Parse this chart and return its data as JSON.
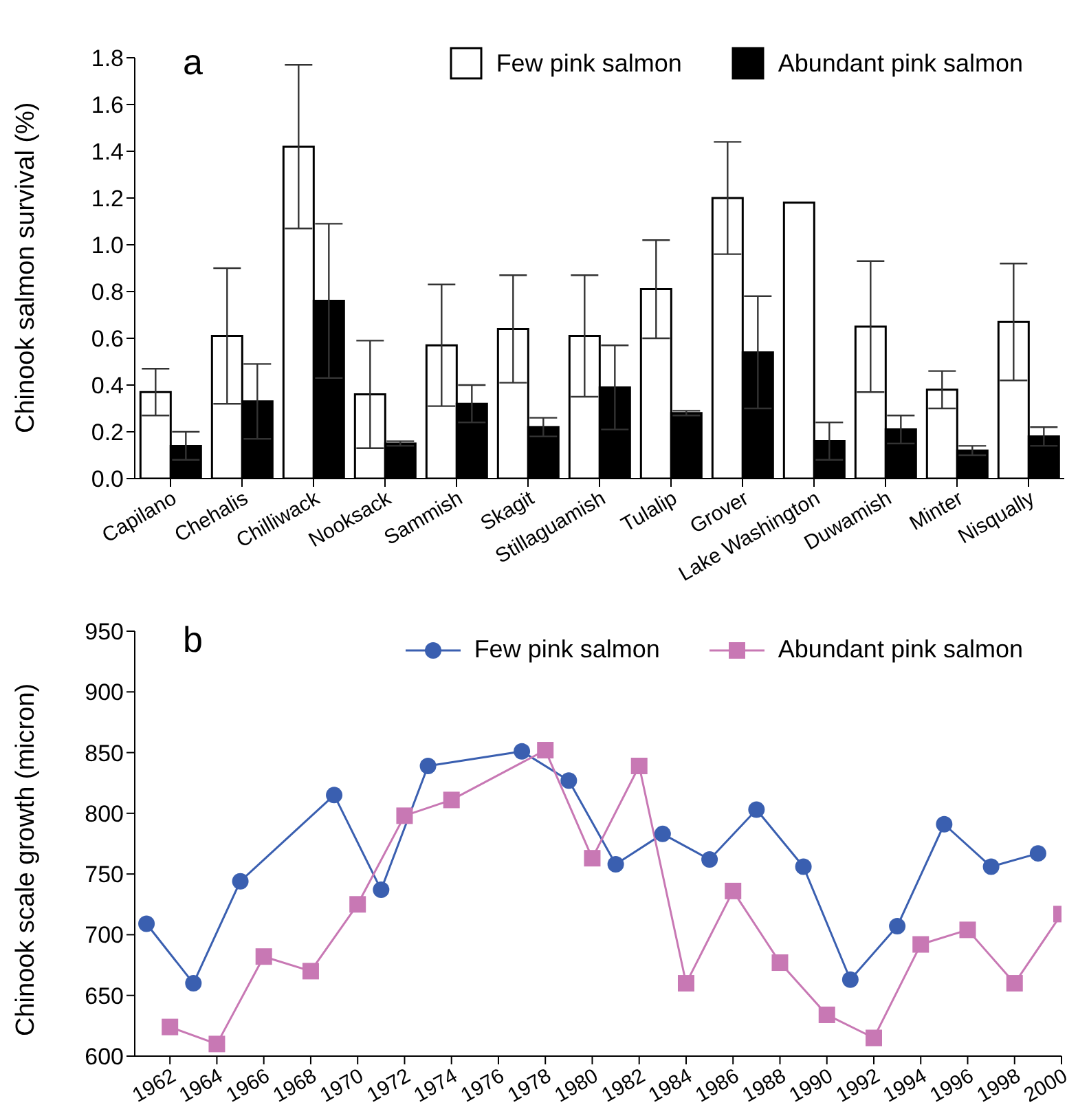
{
  "chart_data": [
    {
      "type": "bar",
      "ylabel": "Chinook salmon survival (%)",
      "annotations": [
        "a"
      ],
      "categories": [
        "Capilano",
        "Chehalis",
        "Chilliwack",
        "Nooksack",
        "Sammish",
        "Skagit",
        "Stillaguamish",
        "Tulalip",
        "Grover",
        "Lake Washington",
        "Duwamish",
        "Minter",
        "Nisqually"
      ],
      "series": [
        {
          "name": "Few pink salmon",
          "color": "#ffffff",
          "values": [
            0.37,
            0.61,
            1.42,
            0.36,
            0.57,
            0.64,
            0.61,
            0.81,
            1.2,
            1.18,
            0.65,
            0.38,
            0.67
          ],
          "errors": [
            0.1,
            0.29,
            0.35,
            0.23,
            0.26,
            0.23,
            0.26,
            0.21,
            0.24,
            null,
            0.28,
            0.08,
            0.25
          ]
        },
        {
          "name": "Abundant pink salmon",
          "color": "#000000",
          "values": [
            0.14,
            0.33,
            0.76,
            0.15,
            0.32,
            0.22,
            0.39,
            0.28,
            0.54,
            0.16,
            0.21,
            0.12,
            0.18
          ],
          "errors": [
            0.06,
            0.16,
            0.33,
            0.01,
            0.08,
            0.04,
            0.18,
            0.01,
            0.24,
            0.08,
            0.06,
            0.02,
            0.04
          ]
        }
      ],
      "ylim": [
        0,
        1.8
      ],
      "yticks": [
        {
          "value": 0,
          "label": "0.0"
        },
        0.2,
        0.4,
        0.6,
        0.8,
        {
          "value": 1,
          "label": "1.0"
        },
        1.2,
        1.4,
        1.6,
        1.8
      ],
      "grid": false,
      "legend": "top right"
    },
    {
      "type": "line",
      "ylabel": "Chinook scale growth (micron)",
      "annotations": [
        "b"
      ],
      "series": [
        {
          "name": "Few pink salmon",
          "color": "#3a5fb0",
          "marker": "circle",
          "x": [
            1961,
            1963,
            1965,
            1969,
            1971,
            1973,
            1977,
            1979,
            1981,
            1983,
            1985,
            1987,
            1989,
            1991,
            1993,
            1995,
            1997,
            1999
          ],
          "values": [
            709,
            660,
            744,
            815,
            737,
            839,
            851,
            827,
            758,
            783,
            762,
            803,
            756,
            663,
            707,
            791,
            756,
            767
          ]
        },
        {
          "name": "Abundant pink salmon",
          "color": "#c878b4",
          "marker": "square",
          "x": [
            1962,
            1964,
            1966,
            1968,
            1970,
            1972,
            1974,
            1978,
            1980,
            1982,
            1984,
            1986,
            1988,
            1990,
            1992,
            1994,
            1996,
            1998,
            2000
          ],
          "values": [
            624,
            610,
            682,
            670,
            725,
            798,
            811,
            852,
            763,
            839,
            660,
            736,
            677,
            634,
            615,
            692,
            704,
            660,
            717
          ]
        }
      ],
      "xlim": [
        1960.5,
        2000
      ],
      "xticks": [
        1962,
        1964,
        1966,
        1968,
        1970,
        1972,
        1974,
        1976,
        1978,
        1980,
        1982,
        1984,
        1986,
        1988,
        1990,
        1992,
        1994,
        1996,
        1998,
        2000
      ],
      "ylim": [
        600,
        950
      ],
      "yticks": [
        600,
        650,
        700,
        750,
        800,
        850,
        900,
        950
      ],
      "grid": false,
      "legend": "top right"
    }
  ]
}
